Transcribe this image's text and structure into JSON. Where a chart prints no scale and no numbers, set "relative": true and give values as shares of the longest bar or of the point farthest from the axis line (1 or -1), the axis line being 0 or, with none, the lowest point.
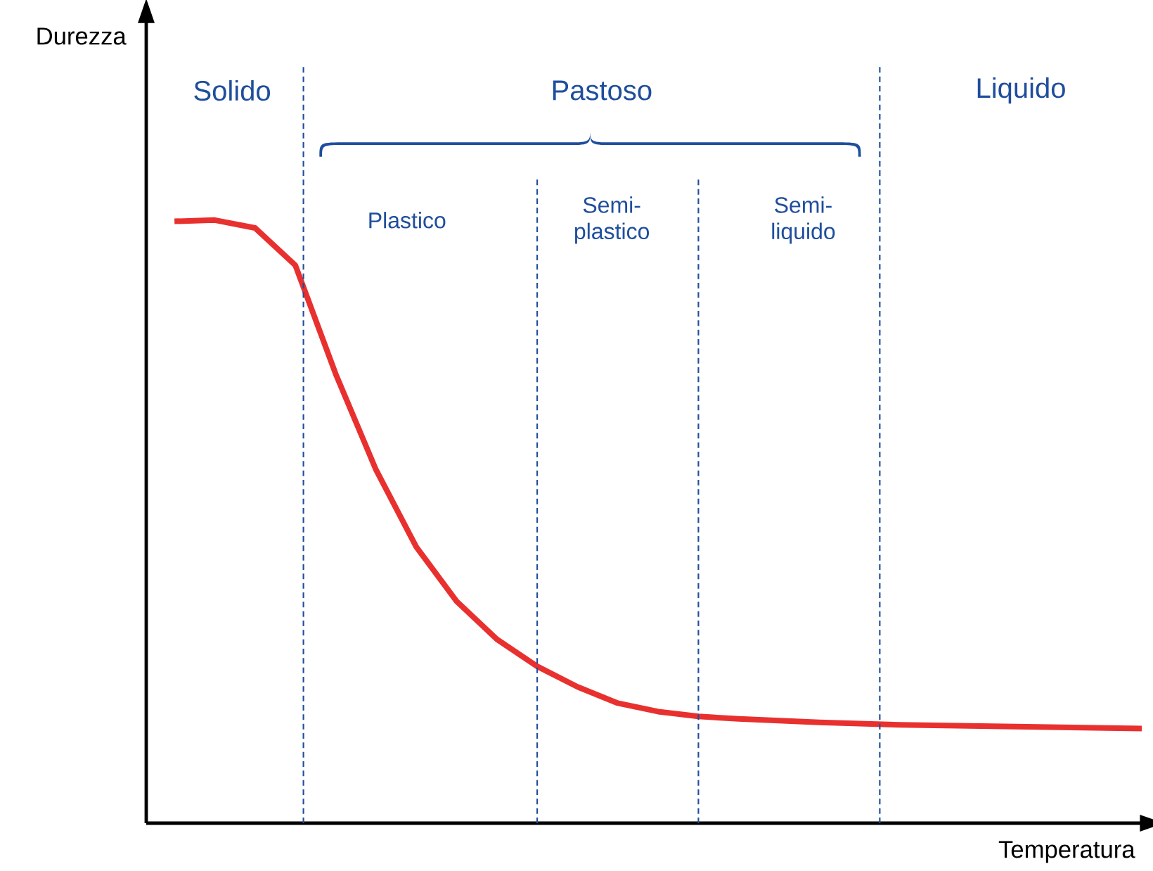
{
  "chart_data": {
    "type": "line",
    "relative": true,
    "xlabel": "Temperatura",
    "categories": [
      null,
      null,
      null,
      null,
      null,
      null,
      null,
      null,
      null,
      null,
      null,
      null,
      null,
      null,
      null,
      null,
      null,
      null,
      null,
      null,
      null,
      null,
      null,
      null,
      null
    ],
    "series": [
      {
        "color": "#e8312f",
        "values": [
          0.998,
          1.0,
          0.987,
          0.925,
          0.745,
          0.586,
          0.458,
          0.368,
          0.305,
          0.26,
          0.226,
          0.199,
          0.185,
          0.177,
          0.173,
          0.17,
          0.167,
          0.165,
          0.163,
          0.162,
          0.161,
          0.16,
          0.159,
          0.158,
          0.157
        ]
      }
    ],
    "annotations": [
      "Durezza",
      "Solido",
      "Pastoso",
      "Liquido",
      "Plastico",
      "Semi-plastico",
      "Semi-liquido"
    ],
    "marker": "none",
    "line_style": "solid"
  }
}
